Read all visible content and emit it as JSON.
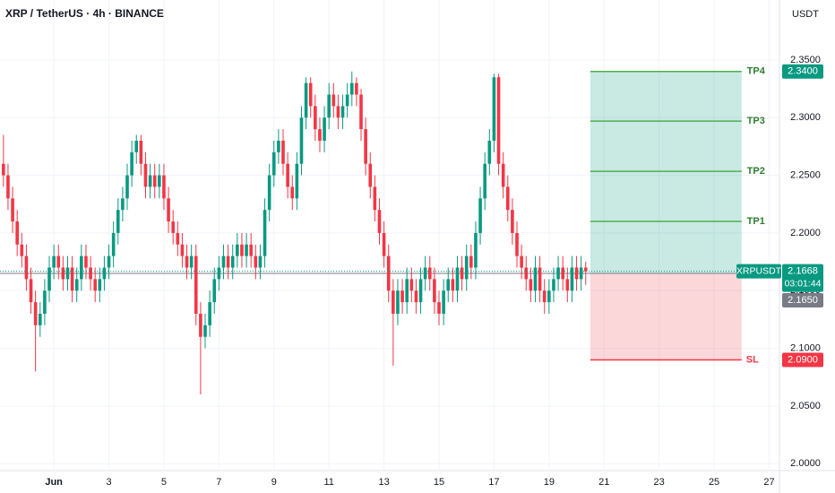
{
  "chart_data": {
    "type": "candlestick",
    "title": "XRP / TetherUS · 4h · BINANCE",
    "currency": "USDT",
    "up_color": "#089981",
    "down_color": "#f23645",
    "grid": true,
    "xlim": [
      -47,
      633
    ],
    "ylim": [
      1.994,
      2.402
    ],
    "xticks": [
      {
        "value": 0,
        "label": "Jun"
      },
      {
        "value": 48,
        "label": "3"
      },
      {
        "value": 96,
        "label": "5"
      },
      {
        "value": 144,
        "label": "7"
      },
      {
        "value": 192,
        "label": "9"
      },
      {
        "value": 240,
        "label": "11"
      },
      {
        "value": 288,
        "label": "13"
      },
      {
        "value": 336,
        "label": "15"
      },
      {
        "value": 384,
        "label": "17"
      },
      {
        "value": 432,
        "label": "19"
      },
      {
        "value": 480,
        "label": "21"
      },
      {
        "value": 528,
        "label": "23"
      },
      {
        "value": 576,
        "label": "25"
      },
      {
        "value": 624,
        "label": "27"
      }
    ],
    "yticks": [
      {
        "value": 2.0,
        "label": "2.0000"
      },
      {
        "value": 2.05,
        "label": "2.0500"
      },
      {
        "value": 2.1,
        "label": "2.1000"
      },
      {
        "value": 2.15,
        "label": "2.1500"
      },
      {
        "value": 2.2,
        "label": "2.2000"
      },
      {
        "value": 2.25,
        "label": "2.2500"
      },
      {
        "value": 2.3,
        "label": "2.3000"
      },
      {
        "value": 2.35,
        "label": "2.3500"
      }
    ],
    "x": [
      -44,
      -40,
      -36,
      -32,
      -28,
      -24,
      -20,
      -16,
      -12,
      -8,
      -4,
      0,
      4,
      8,
      12,
      16,
      20,
      24,
      28,
      32,
      36,
      40,
      44,
      48,
      52,
      56,
      60,
      64,
      68,
      72,
      76,
      80,
      84,
      88,
      92,
      96,
      100,
      104,
      108,
      112,
      116,
      120,
      124,
      128,
      132,
      136,
      140,
      144,
      148,
      152,
      156,
      160,
      164,
      168,
      172,
      176,
      180,
      184,
      188,
      192,
      196,
      200,
      204,
      208,
      212,
      216,
      220,
      224,
      228,
      232,
      236,
      240,
      244,
      248,
      252,
      256,
      260,
      264,
      268,
      272,
      276,
      280,
      284,
      288,
      292,
      296,
      300,
      304,
      308,
      312,
      316,
      320,
      324,
      328,
      332,
      336,
      340,
      344,
      348,
      352,
      356,
      360,
      364,
      368,
      372,
      376,
      380,
      384,
      388,
      392,
      396,
      400,
      404,
      408,
      412,
      416,
      420,
      424,
      428,
      432,
      436,
      440,
      444,
      448,
      452,
      456,
      460,
      464
    ],
    "candles": [
      [
        2.26,
        2.285,
        2.24,
        2.25
      ],
      [
        2.25,
        2.26,
        2.22,
        2.23
      ],
      [
        2.23,
        2.24,
        2.2,
        2.21
      ],
      [
        2.21,
        2.22,
        2.18,
        2.19
      ],
      [
        2.19,
        2.2,
        2.17,
        2.18
      ],
      [
        2.18,
        2.19,
        2.15,
        2.16
      ],
      [
        2.16,
        2.17,
        2.13,
        2.14
      ],
      [
        2.14,
        2.15,
        2.08,
        2.12
      ],
      [
        2.12,
        2.14,
        2.11,
        2.13
      ],
      [
        2.13,
        2.16,
        2.12,
        2.15
      ],
      [
        2.15,
        2.18,
        2.14,
        2.17
      ],
      [
        2.17,
        2.19,
        2.16,
        2.18
      ],
      [
        2.18,
        2.19,
        2.16,
        2.17
      ],
      [
        2.17,
        2.18,
        2.15,
        2.16
      ],
      [
        2.16,
        2.18,
        2.15,
        2.17
      ],
      [
        2.17,
        2.18,
        2.14,
        2.15
      ],
      [
        2.15,
        2.17,
        2.14,
        2.16
      ],
      [
        2.16,
        2.19,
        2.15,
        2.18
      ],
      [
        2.18,
        2.19,
        2.16,
        2.17
      ],
      [
        2.17,
        2.18,
        2.15,
        2.16
      ],
      [
        2.16,
        2.17,
        2.14,
        2.15
      ],
      [
        2.15,
        2.17,
        2.14,
        2.16
      ],
      [
        2.16,
        2.18,
        2.15,
        2.17
      ],
      [
        2.17,
        2.19,
        2.16,
        2.18
      ],
      [
        2.18,
        2.21,
        2.17,
        2.2
      ],
      [
        2.2,
        2.23,
        2.19,
        2.22
      ],
      [
        2.22,
        2.24,
        2.21,
        2.23
      ],
      [
        2.23,
        2.26,
        2.22,
        2.25
      ],
      [
        2.25,
        2.28,
        2.24,
        2.27
      ],
      [
        2.27,
        2.285,
        2.26,
        2.28
      ],
      [
        2.28,
        2.285,
        2.25,
        2.26
      ],
      [
        2.26,
        2.27,
        2.23,
        2.24
      ],
      [
        2.24,
        2.26,
        2.23,
        2.25
      ],
      [
        2.25,
        2.26,
        2.23,
        2.24
      ],
      [
        2.24,
        2.26,
        2.23,
        2.25
      ],
      [
        2.25,
        2.26,
        2.22,
        2.23
      ],
      [
        2.23,
        2.24,
        2.2,
        2.21
      ],
      [
        2.21,
        2.22,
        2.19,
        2.2
      ],
      [
        2.2,
        2.21,
        2.18,
        2.19
      ],
      [
        2.19,
        2.2,
        2.17,
        2.18
      ],
      [
        2.18,
        2.19,
        2.16,
        2.17
      ],
      [
        2.17,
        2.19,
        2.16,
        2.18
      ],
      [
        2.18,
        2.19,
        2.12,
        2.13
      ],
      [
        2.13,
        2.14,
        2.06,
        2.11
      ],
      [
        2.11,
        2.13,
        2.1,
        2.12
      ],
      [
        2.12,
        2.15,
        2.11,
        2.14
      ],
      [
        2.14,
        2.17,
        2.13,
        2.16
      ],
      [
        2.16,
        2.18,
        2.15,
        2.17
      ],
      [
        2.17,
        2.19,
        2.16,
        2.18
      ],
      [
        2.18,
        2.19,
        2.16,
        2.17
      ],
      [
        2.17,
        2.19,
        2.16,
        2.18
      ],
      [
        2.18,
        2.2,
        2.17,
        2.19
      ],
      [
        2.19,
        2.2,
        2.17,
        2.18
      ],
      [
        2.18,
        2.2,
        2.17,
        2.19
      ],
      [
        2.19,
        2.2,
        2.17,
        2.18
      ],
      [
        2.18,
        2.19,
        2.16,
        2.17
      ],
      [
        2.17,
        2.19,
        2.16,
        2.18
      ],
      [
        2.18,
        2.23,
        2.17,
        2.22
      ],
      [
        2.22,
        2.26,
        2.21,
        2.25
      ],
      [
        2.25,
        2.28,
        2.24,
        2.27
      ],
      [
        2.27,
        2.29,
        2.26,
        2.28
      ],
      [
        2.28,
        2.29,
        2.25,
        2.26
      ],
      [
        2.26,
        2.27,
        2.23,
        2.24
      ],
      [
        2.24,
        2.25,
        2.22,
        2.23
      ],
      [
        2.23,
        2.27,
        2.22,
        2.26
      ],
      [
        2.26,
        2.31,
        2.25,
        2.3
      ],
      [
        2.3,
        2.335,
        2.29,
        2.33
      ],
      [
        2.33,
        2.335,
        2.3,
        2.31
      ],
      [
        2.31,
        2.32,
        2.28,
        2.29
      ],
      [
        2.29,
        2.3,
        2.27,
        2.28
      ],
      [
        2.28,
        2.31,
        2.27,
        2.3
      ],
      [
        2.3,
        2.33,
        2.29,
        2.32
      ],
      [
        2.32,
        2.33,
        2.3,
        2.31
      ],
      [
        2.31,
        2.32,
        2.29,
        2.3
      ],
      [
        2.3,
        2.32,
        2.29,
        2.31
      ],
      [
        2.31,
        2.33,
        2.3,
        2.32
      ],
      [
        2.32,
        2.34,
        2.31,
        2.33
      ],
      [
        2.33,
        2.335,
        2.31,
        2.32
      ],
      [
        2.32,
        2.325,
        2.28,
        2.29
      ],
      [
        2.29,
        2.3,
        2.25,
        2.26
      ],
      [
        2.26,
        2.27,
        2.23,
        2.24
      ],
      [
        2.24,
        2.25,
        2.21,
        2.22
      ],
      [
        2.22,
        2.23,
        2.19,
        2.2
      ],
      [
        2.2,
        2.21,
        2.17,
        2.18
      ],
      [
        2.18,
        2.19,
        2.14,
        2.15
      ],
      [
        2.15,
        2.16,
        2.085,
        2.13
      ],
      [
        2.13,
        2.16,
        2.12,
        2.15
      ],
      [
        2.15,
        2.16,
        2.13,
        2.14
      ],
      [
        2.14,
        2.17,
        2.13,
        2.16
      ],
      [
        2.16,
        2.17,
        2.14,
        2.15
      ],
      [
        2.15,
        2.16,
        2.13,
        2.14
      ],
      [
        2.14,
        2.17,
        2.13,
        2.16
      ],
      [
        2.16,
        2.18,
        2.15,
        2.17
      ],
      [
        2.17,
        2.18,
        2.15,
        2.16
      ],
      [
        2.16,
        2.17,
        2.13,
        2.14
      ],
      [
        2.14,
        2.15,
        2.12,
        2.13
      ],
      [
        2.13,
        2.16,
        2.12,
        2.15
      ],
      [
        2.15,
        2.17,
        2.14,
        2.16
      ],
      [
        2.16,
        2.17,
        2.14,
        2.15
      ],
      [
        2.15,
        2.18,
        2.14,
        2.17
      ],
      [
        2.17,
        2.18,
        2.15,
        2.16
      ],
      [
        2.16,
        2.19,
        2.15,
        2.18
      ],
      [
        2.18,
        2.19,
        2.16,
        2.17
      ],
      [
        2.17,
        2.21,
        2.16,
        2.2
      ],
      [
        2.2,
        2.24,
        2.19,
        2.23
      ],
      [
        2.23,
        2.27,
        2.22,
        2.26
      ],
      [
        2.26,
        2.29,
        2.25,
        2.28
      ],
      [
        2.28,
        2.338,
        2.27,
        2.335
      ],
      [
        2.335,
        2.338,
        2.25,
        2.26
      ],
      [
        2.26,
        2.27,
        2.23,
        2.24
      ],
      [
        2.24,
        2.25,
        2.21,
        2.22
      ],
      [
        2.22,
        2.23,
        2.19,
        2.2
      ],
      [
        2.2,
        2.21,
        2.17,
        2.18
      ],
      [
        2.18,
        2.19,
        2.16,
        2.17
      ],
      [
        2.17,
        2.18,
        2.15,
        2.16
      ],
      [
        2.16,
        2.17,
        2.14,
        2.15
      ],
      [
        2.15,
        2.18,
        2.14,
        2.17
      ],
      [
        2.17,
        2.18,
        2.14,
        2.15
      ],
      [
        2.15,
        2.16,
        2.13,
        2.14
      ],
      [
        2.14,
        2.16,
        2.13,
        2.15
      ],
      [
        2.15,
        2.17,
        2.14,
        2.16
      ],
      [
        2.16,
        2.18,
        2.15,
        2.17
      ],
      [
        2.17,
        2.18,
        2.15,
        2.16
      ],
      [
        2.16,
        2.17,
        2.14,
        2.15
      ],
      [
        2.15,
        2.18,
        2.14,
        2.17
      ],
      [
        2.17,
        2.18,
        2.15,
        2.16
      ],
      [
        2.16,
        2.18,
        2.15,
        2.17
      ],
      [
        2.17,
        2.175,
        2.155,
        2.1668
      ]
    ],
    "last_price": {
      "symbol": "XRPUSDT",
      "value": 2.1668,
      "label": "2.1668",
      "countdown": "03:01:44"
    },
    "position": {
      "x": [
        468,
        600
      ],
      "entry": {
        "value": 2.165,
        "label": "2.1650"
      },
      "stop": {
        "name": "SL",
        "value": 2.09,
        "label": "2.0900"
      },
      "targets": [
        {
          "name": "TP1",
          "value": 2.21
        },
        {
          "name": "TP2",
          "value": 2.2535
        },
        {
          "name": "TP3",
          "value": 2.297
        },
        {
          "name": "TP4",
          "value": 2.34,
          "label": "2.3400"
        }
      ]
    }
  }
}
